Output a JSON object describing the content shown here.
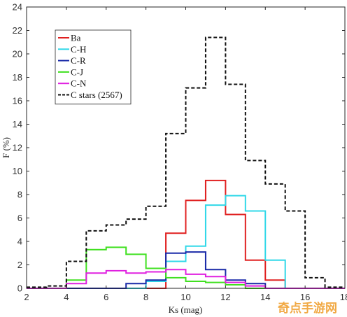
{
  "chart_data": {
    "type": "line",
    "style": "step-histogram",
    "xlabel": "Ks (mag)",
    "ylabel": "F (%)",
    "xlim": [
      2,
      18
    ],
    "ylim": [
      0,
      24
    ],
    "xticks": [
      "2",
      "4",
      "6",
      "8",
      "10",
      "12",
      "14",
      "16",
      "18"
    ],
    "yticks": [
      "0",
      "2",
      "4",
      "6",
      "8",
      "10",
      "12",
      "14",
      "16",
      "18",
      "20",
      "22",
      "24"
    ],
    "bin_edges": [
      2,
      3,
      4,
      5,
      6,
      7,
      8,
      9,
      10,
      11,
      12,
      13,
      14,
      15,
      16,
      17,
      18
    ],
    "legend_position": "top-left",
    "grid": false,
    "series": [
      {
        "name": "Ba",
        "color": "#e02020",
        "dash": "solid",
        "values": [
          0,
          0,
          0,
          0,
          0,
          0,
          0,
          4.7,
          7.5,
          9.2,
          6.3,
          2.4,
          0.7,
          0,
          0,
          0
        ]
      },
      {
        "name": "C-H",
        "color": "#30d8e8",
        "dash": "solid",
        "values": [
          0,
          0,
          0,
          0,
          0,
          0,
          0.6,
          2.3,
          3.6,
          7.1,
          7.9,
          6.6,
          2.4,
          0,
          0,
          0
        ]
      },
      {
        "name": "C-R",
        "color": "#1a2aa8",
        "dash": "solid",
        "values": [
          0,
          0,
          0,
          0,
          0,
          0.4,
          0.7,
          3.0,
          3.1,
          1.6,
          0.7,
          0.4,
          0,
          0,
          0,
          0
        ]
      },
      {
        "name": "C-J",
        "color": "#40e020",
        "dash": "solid",
        "values": [
          0,
          0,
          0.7,
          3.3,
          3.5,
          2.9,
          1.7,
          0.9,
          0.6,
          0.5,
          0.3,
          0,
          0,
          0,
          0,
          0
        ]
      },
      {
        "name": "C-N",
        "color": "#e020e0",
        "dash": "solid",
        "values": [
          0,
          0,
          0.4,
          1.3,
          1.5,
          1.3,
          1.4,
          1.6,
          1.2,
          1.0,
          0.5,
          0.2,
          0,
          0,
          0,
          0
        ]
      },
      {
        "name": "C stars (2567)",
        "color": "#111111",
        "dash": "dashed",
        "values": [
          0.1,
          0.2,
          2.3,
          4.9,
          5.4,
          5.9,
          7.0,
          13.2,
          17.1,
          21.4,
          17.4,
          10.9,
          8.9,
          6.6,
          0.9,
          0.1
        ]
      }
    ]
  },
  "watermark": {
    "text": "奇点手游网"
  }
}
